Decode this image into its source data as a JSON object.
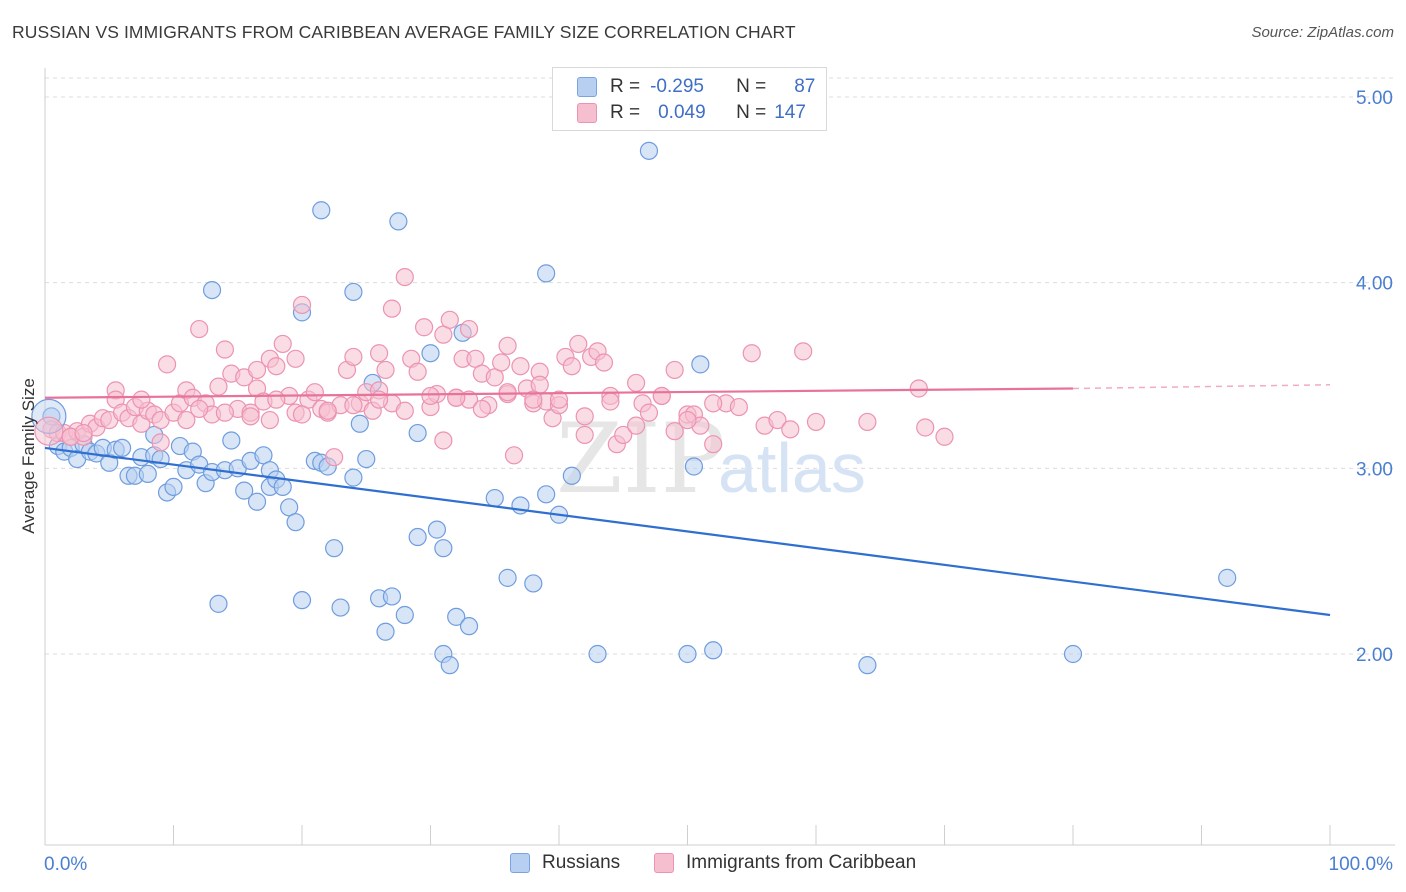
{
  "title": "RUSSIAN VS IMMIGRANTS FROM CARIBBEAN AVERAGE FAMILY SIZE CORRELATION CHART",
  "source": "Source: ZipAtlas.com",
  "colors": {
    "blue": "#4a7fd0",
    "blue_fill": "#b7cff0",
    "blue_line": "#2f6fd0",
    "pink": "#e6789e",
    "pink_fill": "#f5bfd0",
    "pink_line": "#e8739a",
    "grid": "#dcdcdc",
    "watermark": "#e6e6e6"
  },
  "legend_top": {
    "rows": [
      {
        "r_label": "R =",
        "r_value": "-0.295",
        "n_label": "N =",
        "n_value": "87"
      },
      {
        "r_label": "R =",
        "r_value": "0.049",
        "n_label": "N =",
        "n_value": "147"
      }
    ]
  },
  "legend_bottom": [
    "Russians",
    "Immigrants from Caribbean"
  ],
  "watermark": {
    "zip": "ZIP",
    "atlas": "atlas"
  },
  "chart_data": {
    "type": "scatter",
    "xlabel": "",
    "ylabel": "Average Family Size",
    "xlim": [
      0,
      100
    ],
    "ylim": [
      1.0,
      5.1
    ],
    "x_tick_labels": [
      "0.0%",
      "100.0%"
    ],
    "y_ticks": [
      2.0,
      3.0,
      4.0,
      5.0
    ],
    "y_tick_labels": [
      "2.00",
      "3.00",
      "4.00",
      "5.00"
    ],
    "grid": true,
    "series": [
      {
        "name": "Russians",
        "r": -0.295,
        "n": 87,
        "trend": {
          "x0": 0,
          "y0": 3.11,
          "x1": 100,
          "y1": 2.21
        },
        "points": [
          [
            0.5,
            3.28
          ],
          [
            1,
            3.12
          ],
          [
            1.5,
            3.09
          ],
          [
            2,
            3.11
          ],
          [
            3,
            3.13
          ],
          [
            2.5,
            3.05
          ],
          [
            3.5,
            3.09
          ],
          [
            4,
            3.08
          ],
          [
            4.5,
            3.11
          ],
          [
            5,
            3.03
          ],
          [
            5.5,
            3.1
          ],
          [
            6,
            3.11
          ],
          [
            6.5,
            2.96
          ],
          [
            7,
            2.96
          ],
          [
            7.5,
            3.06
          ],
          [
            8,
            2.97
          ],
          [
            8.5,
            3.07
          ],
          [
            8.5,
            3.18
          ],
          [
            9,
            3.05
          ],
          [
            9.5,
            2.87
          ],
          [
            10,
            2.9
          ],
          [
            10.5,
            3.12
          ],
          [
            11,
            2.99
          ],
          [
            11.5,
            3.09
          ],
          [
            12,
            3.02
          ],
          [
            12.5,
            2.92
          ],
          [
            13,
            3.96
          ],
          [
            13,
            2.98
          ],
          [
            13.5,
            2.27
          ],
          [
            14,
            2.99
          ],
          [
            14.5,
            3.15
          ],
          [
            15,
            3.0
          ],
          [
            15.5,
            2.88
          ],
          [
            16,
            3.04
          ],
          [
            16.5,
            2.82
          ],
          [
            17,
            3.07
          ],
          [
            17.5,
            2.9
          ],
          [
            17.5,
            2.99
          ],
          [
            18,
            2.94
          ],
          [
            18.5,
            2.9
          ],
          [
            19,
            2.79
          ],
          [
            19.5,
            2.71
          ],
          [
            20,
            3.84
          ],
          [
            20,
            2.29
          ],
          [
            21,
            3.04
          ],
          [
            21.5,
            4.39
          ],
          [
            21.5,
            3.03
          ],
          [
            22,
            3.01
          ],
          [
            22.5,
            2.57
          ],
          [
            23,
            2.25
          ],
          [
            24,
            2.95
          ],
          [
            24,
            3.95
          ],
          [
            24.5,
            3.24
          ],
          [
            25,
            3.05
          ],
          [
            25.5,
            3.46
          ],
          [
            26,
            2.3
          ],
          [
            26.5,
            2.12
          ],
          [
            27,
            2.31
          ],
          [
            27.5,
            4.33
          ],
          [
            28,
            2.21
          ],
          [
            29,
            3.19
          ],
          [
            29,
            2.63
          ],
          [
            30,
            3.62
          ],
          [
            30.5,
            2.67
          ],
          [
            31,
            2.57
          ],
          [
            31,
            2.0
          ],
          [
            31.5,
            1.94
          ],
          [
            32,
            2.2
          ],
          [
            32.5,
            3.73
          ],
          [
            33,
            2.15
          ],
          [
            35,
            2.84
          ],
          [
            36,
            2.41
          ],
          [
            37,
            2.8
          ],
          [
            38,
            2.38
          ],
          [
            39,
            2.86
          ],
          [
            39,
            4.05
          ],
          [
            40,
            2.75
          ],
          [
            41,
            2.96
          ],
          [
            43,
            2.0
          ],
          [
            47,
            4.71
          ],
          [
            50,
            2.0
          ],
          [
            50.5,
            3.01
          ],
          [
            51,
            3.56
          ],
          [
            52,
            2.02
          ],
          [
            64,
            1.94
          ],
          [
            80,
            2.0
          ],
          [
            92,
            2.41
          ]
        ]
      },
      {
        "name": "Immigrants from Caribbean",
        "r": 0.049,
        "n": 147,
        "trend": {
          "x0": 0,
          "y0": 3.38,
          "x1": 80,
          "y1": 3.43,
          "dash_x1": 100,
          "dash_y1": 3.45
        },
        "points": [
          [
            0.5,
            3.21
          ],
          [
            1,
            3.19
          ],
          [
            1.5,
            3.19
          ],
          [
            2,
            3.17
          ],
          [
            2.5,
            3.2
          ],
          [
            3,
            3.17
          ],
          [
            3.5,
            3.24
          ],
          [
            4,
            3.22
          ],
          [
            4.5,
            3.27
          ],
          [
            5,
            3.26
          ],
          [
            5.5,
            3.42
          ],
          [
            5.5,
            3.37
          ],
          [
            6,
            3.3
          ],
          [
            6.5,
            3.27
          ],
          [
            7,
            3.33
          ],
          [
            7.5,
            3.24
          ],
          [
            8,
            3.31
          ],
          [
            8.5,
            3.29
          ],
          [
            9,
            3.26
          ],
          [
            9,
            3.14
          ],
          [
            9.5,
            3.56
          ],
          [
            10,
            3.3
          ],
          [
            10.5,
            3.35
          ],
          [
            11,
            3.42
          ],
          [
            11,
            3.26
          ],
          [
            11.5,
            3.38
          ],
          [
            12,
            3.75
          ],
          [
            12.5,
            3.35
          ],
          [
            13,
            3.29
          ],
          [
            13.5,
            3.44
          ],
          [
            14,
            3.64
          ],
          [
            14.5,
            3.51
          ],
          [
            15,
            3.32
          ],
          [
            15.5,
            3.49
          ],
          [
            16,
            3.3
          ],
          [
            16.5,
            3.43
          ],
          [
            16.5,
            3.53
          ],
          [
            17,
            3.36
          ],
          [
            17.5,
            3.26
          ],
          [
            17.5,
            3.59
          ],
          [
            18,
            3.55
          ],
          [
            18.5,
            3.67
          ],
          [
            19,
            3.39
          ],
          [
            19.5,
            3.59
          ],
          [
            19.5,
            3.3
          ],
          [
            20,
            3.88
          ],
          [
            20.5,
            3.37
          ],
          [
            21,
            3.41
          ],
          [
            21.5,
            3.32
          ],
          [
            22,
            3.3
          ],
          [
            22.5,
            3.06
          ],
          [
            23,
            3.34
          ],
          [
            23.5,
            3.53
          ],
          [
            24,
            3.6
          ],
          [
            24.5,
            3.35
          ],
          [
            25,
            3.41
          ],
          [
            25.5,
            3.31
          ],
          [
            26,
            3.62
          ],
          [
            26,
            3.42
          ],
          [
            26.5,
            3.53
          ],
          [
            27,
            3.86
          ],
          [
            27,
            3.35
          ],
          [
            28,
            4.03
          ],
          [
            28.5,
            3.59
          ],
          [
            29,
            3.52
          ],
          [
            29.5,
            3.76
          ],
          [
            30,
            3.33
          ],
          [
            30.5,
            3.4
          ],
          [
            31,
            3.72
          ],
          [
            31,
            3.15
          ],
          [
            31.5,
            3.8
          ],
          [
            32,
            3.38
          ],
          [
            32.5,
            3.59
          ],
          [
            33,
            3.75
          ],
          [
            33,
            3.37
          ],
          [
            33.5,
            3.59
          ],
          [
            34,
            3.51
          ],
          [
            34.5,
            3.34
          ],
          [
            35,
            3.49
          ],
          [
            35.5,
            3.57
          ],
          [
            36,
            3.4
          ],
          [
            36,
            3.66
          ],
          [
            36.5,
            3.07
          ],
          [
            37,
            3.55
          ],
          [
            37.5,
            3.43
          ],
          [
            38,
            3.35
          ],
          [
            38.5,
            3.52
          ],
          [
            38.5,
            3.45
          ],
          [
            39,
            3.36
          ],
          [
            39.5,
            3.27
          ],
          [
            40,
            3.34
          ],
          [
            40.5,
            3.6
          ],
          [
            41,
            3.55
          ],
          [
            41.5,
            3.67
          ],
          [
            42,
            3.18
          ],
          [
            42.5,
            3.6
          ],
          [
            43,
            3.63
          ],
          [
            43.5,
            3.57
          ],
          [
            44,
            3.39
          ],
          [
            44.5,
            3.13
          ],
          [
            45,
            3.18
          ],
          [
            46,
            3.46
          ],
          [
            46.5,
            3.35
          ],
          [
            47,
            3.3
          ],
          [
            48,
            3.39
          ],
          [
            49,
            3.2
          ],
          [
            49,
            3.53
          ],
          [
            50,
            3.29
          ],
          [
            50.5,
            3.29
          ],
          [
            51,
            3.23
          ],
          [
            52,
            3.13
          ],
          [
            53,
            3.35
          ],
          [
            54,
            3.33
          ],
          [
            55,
            3.62
          ],
          [
            56,
            3.23
          ],
          [
            57,
            3.26
          ],
          [
            58,
            3.21
          ],
          [
            59,
            3.63
          ],
          [
            60,
            3.25
          ],
          [
            64,
            3.25
          ],
          [
            68,
            3.43
          ],
          [
            68.5,
            3.22
          ],
          [
            70,
            3.17
          ],
          [
            2,
            3.17
          ],
          [
            3,
            3.19
          ],
          [
            7.5,
            3.37
          ],
          [
            12,
            3.32
          ],
          [
            14,
            3.3
          ],
          [
            16,
            3.28
          ],
          [
            18,
            3.37
          ],
          [
            20,
            3.29
          ],
          [
            22,
            3.31
          ],
          [
            24,
            3.34
          ],
          [
            26,
            3.37
          ],
          [
            28,
            3.31
          ],
          [
            30,
            3.39
          ],
          [
            32,
            3.38
          ],
          [
            34,
            3.32
          ],
          [
            36,
            3.41
          ],
          [
            38,
            3.37
          ],
          [
            40,
            3.37
          ],
          [
            42,
            3.28
          ],
          [
            44,
            3.36
          ],
          [
            46,
            3.23
          ],
          [
            48,
            3.39
          ],
          [
            50,
            3.26
          ],
          [
            52,
            3.35
          ]
        ]
      }
    ]
  }
}
